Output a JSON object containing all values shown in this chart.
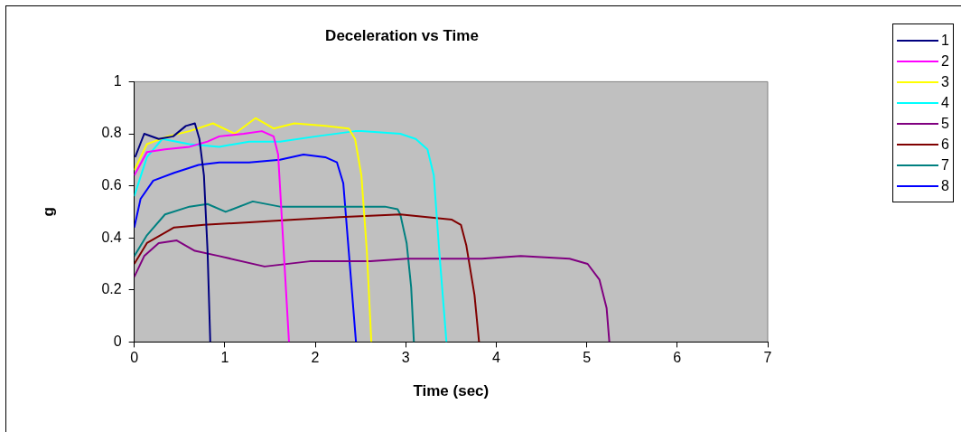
{
  "chart_data": {
    "type": "line",
    "title": "Deceleration vs Time",
    "xlabel": "Time (sec)",
    "ylabel": "g",
    "xlim": [
      0,
      7
    ],
    "xticks": [
      0,
      1,
      2,
      3,
      4,
      5,
      6,
      7
    ],
    "ylim": [
      0,
      1
    ],
    "yticks": [
      0,
      0.2,
      0.4,
      0.6,
      0.8,
      1
    ],
    "grid": false,
    "legend": "right",
    "marker": "none",
    "line_style": "solid",
    "series": [
      {
        "name": "1",
        "color": "#000080",
        "x": [
          0.01,
          0.11,
          0.27,
          0.43,
          0.57,
          0.67,
          0.72,
          0.77,
          0.81,
          0.84
        ],
        "values": [
          0.71,
          0.8,
          0.78,
          0.79,
          0.83,
          0.84,
          0.78,
          0.64,
          0.35,
          0
        ]
      },
      {
        "name": "2",
        "color": "#ff00ff",
        "x": [
          0,
          0.14,
          0.34,
          0.61,
          0.81,
          0.94,
          1.21,
          1.41,
          1.54,
          1.59,
          1.64,
          1.71
        ],
        "values": [
          0.64,
          0.73,
          0.74,
          0.75,
          0.77,
          0.79,
          0.8,
          0.81,
          0.79,
          0.72,
          0.42,
          0
        ]
      },
      {
        "name": "3",
        "color": "#ffff00",
        "x": [
          0,
          0.14,
          0.37,
          0.61,
          0.87,
          1.11,
          1.34,
          1.54,
          1.77,
          2.11,
          2.37,
          2.44,
          2.51,
          2.57,
          2.62
        ],
        "values": [
          0.66,
          0.76,
          0.79,
          0.81,
          0.84,
          0.8,
          0.86,
          0.82,
          0.84,
          0.83,
          0.82,
          0.78,
          0.64,
          0.35,
          0
        ]
      },
      {
        "name": "4",
        "color": "#00ffff",
        "x": [
          0,
          0.14,
          0.31,
          0.61,
          0.94,
          1.27,
          1.61,
          2.01,
          2.44,
          2.51,
          2.94,
          3.11,
          3.24,
          3.31,
          3.37,
          3.45
        ],
        "values": [
          0.56,
          0.71,
          0.78,
          0.76,
          0.75,
          0.77,
          0.77,
          0.79,
          0.81,
          0.81,
          0.8,
          0.78,
          0.74,
          0.64,
          0.35,
          0
        ]
      },
      {
        "name": "5",
        "color": "#800080",
        "x": [
          0,
          0.11,
          0.27,
          0.47,
          0.67,
          0.94,
          1.44,
          1.94,
          2.61,
          3.01,
          3.84,
          4.27,
          4.81,
          5.01,
          5.14,
          5.22,
          5.25
        ],
        "values": [
          0.25,
          0.33,
          0.38,
          0.39,
          0.35,
          0.33,
          0.29,
          0.31,
          0.31,
          0.32,
          0.32,
          0.33,
          0.32,
          0.3,
          0.24,
          0.13,
          0
        ]
      },
      {
        "name": "6",
        "color": "#800000",
        "x": [
          0,
          0.14,
          0.44,
          0.77,
          1.27,
          1.77,
          2.27,
          2.94,
          3.51,
          3.61,
          3.67,
          3.76,
          3.81
        ],
        "values": [
          0.3,
          0.38,
          0.44,
          0.45,
          0.46,
          0.47,
          0.48,
          0.49,
          0.47,
          0.45,
          0.37,
          0.18,
          0
        ]
      },
      {
        "name": "7",
        "color": "#008080",
        "x": [
          0,
          0.14,
          0.34,
          0.61,
          0.81,
          1.01,
          1.31,
          1.61,
          1.94,
          2.27,
          2.77,
          2.91,
          2.94,
          3.01,
          3.06,
          3.09
        ],
        "values": [
          0.33,
          0.41,
          0.49,
          0.52,
          0.53,
          0.5,
          0.54,
          0.52,
          0.52,
          0.52,
          0.52,
          0.51,
          0.49,
          0.38,
          0.21,
          0
        ]
      },
      {
        "name": "8",
        "color": "#0000ff",
        "x": [
          0,
          0.07,
          0.21,
          0.44,
          0.71,
          0.94,
          1.27,
          1.61,
          1.87,
          2.11,
          2.24,
          2.31,
          2.37,
          2.45
        ],
        "values": [
          0.44,
          0.55,
          0.62,
          0.65,
          0.68,
          0.69,
          0.69,
          0.7,
          0.72,
          0.71,
          0.69,
          0.61,
          0.35,
          0
        ]
      }
    ]
  }
}
